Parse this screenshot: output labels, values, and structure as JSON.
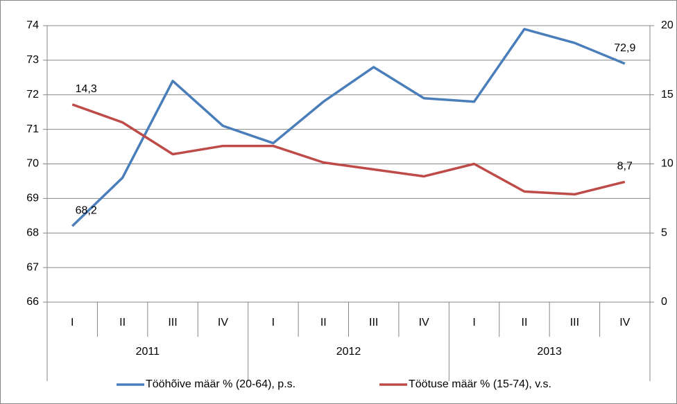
{
  "chart_data": {
    "type": "line",
    "categories": [
      "I",
      "II",
      "III",
      "IV",
      "I",
      "II",
      "III",
      "IV",
      "I",
      "II",
      "III",
      "IV"
    ],
    "groups": [
      "2011",
      "2012",
      "2013"
    ],
    "series": [
      {
        "name": "Tööhõive määr % (20-64), p.s.",
        "color": "#4a7ebb",
        "axis": "y",
        "values": [
          68.2,
          69.6,
          72.4,
          71.1,
          70.6,
          71.8,
          72.8,
          71.9,
          71.8,
          73.9,
          73.5,
          72.9
        ],
        "value_labels": [
          "68,2",
          null,
          null,
          null,
          null,
          null,
          null,
          null,
          null,
          null,
          null,
          "72,9"
        ]
      },
      {
        "name": "Töötuse määr % (15-74), v.s.",
        "color": "#be4b48",
        "axis": "y2",
        "values": [
          14.3,
          13.0,
          10.7,
          11.3,
          11.3,
          10.1,
          9.6,
          9.1,
          10.0,
          8.0,
          7.8,
          8.7
        ],
        "value_labels": [
          "14,3",
          null,
          null,
          null,
          null,
          null,
          null,
          null,
          null,
          null,
          null,
          "8,7"
        ]
      }
    ],
    "ylim": [
      66,
      74
    ],
    "yticks": [
      66,
      67,
      68,
      69,
      70,
      71,
      72,
      73,
      74
    ],
    "y2lim": [
      0,
      20
    ],
    "y2ticks": [
      0,
      5,
      10,
      15,
      20
    ],
    "grid": true,
    "legend": "bottom"
  }
}
